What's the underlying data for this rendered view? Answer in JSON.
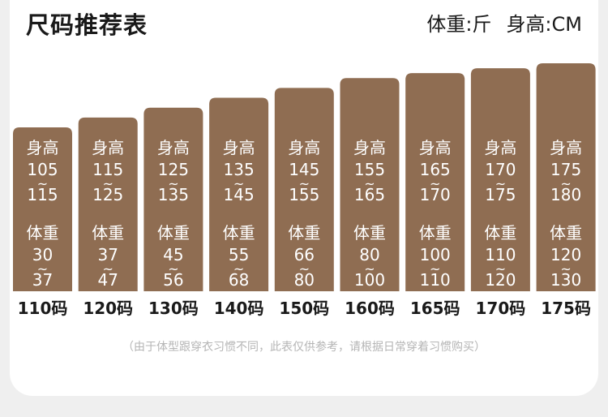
{
  "header": {
    "title": "尺码推荐表",
    "unit_weight": "体重:斤",
    "unit_height": "身高:CM"
  },
  "colors": {
    "bar": "#8f6d52",
    "bar_text": "#ffffff",
    "label": "#1a1a1a",
    "note": "#b5b5b5"
  },
  "chart_data": {
    "type": "bar",
    "title": "尺码推荐表",
    "categories": [
      "110码",
      "120码",
      "130码",
      "140码",
      "150码",
      "160码",
      "165码",
      "170码",
      "175码"
    ],
    "height_label": "身高",
    "weight_label": "体重",
    "range_sep": "~",
    "heights": [
      [
        "105",
        "115"
      ],
      [
        "115",
        "125"
      ],
      [
        "125",
        "135"
      ],
      [
        "135",
        "145"
      ],
      [
        "145",
        "155"
      ],
      [
        "155",
        "165"
      ],
      [
        "165",
        "170"
      ],
      [
        "170",
        "175"
      ],
      [
        "175",
        "180"
      ]
    ],
    "weights": [
      [
        "30",
        "37"
      ],
      [
        "37",
        "47"
      ],
      [
        "45",
        "56"
      ],
      [
        "55",
        "68"
      ],
      [
        "66",
        "80"
      ],
      [
        "80",
        "100"
      ],
      [
        "100",
        "110"
      ],
      [
        "110",
        "120"
      ],
      [
        "120",
        "130"
      ]
    ],
    "values": [
      110,
      120,
      130,
      140,
      150,
      160,
      165,
      170,
      175
    ]
  },
  "footnote": "（由于体型跟穿衣习惯不同，此表仅供参考，请根据日常穿着习惯购买）"
}
